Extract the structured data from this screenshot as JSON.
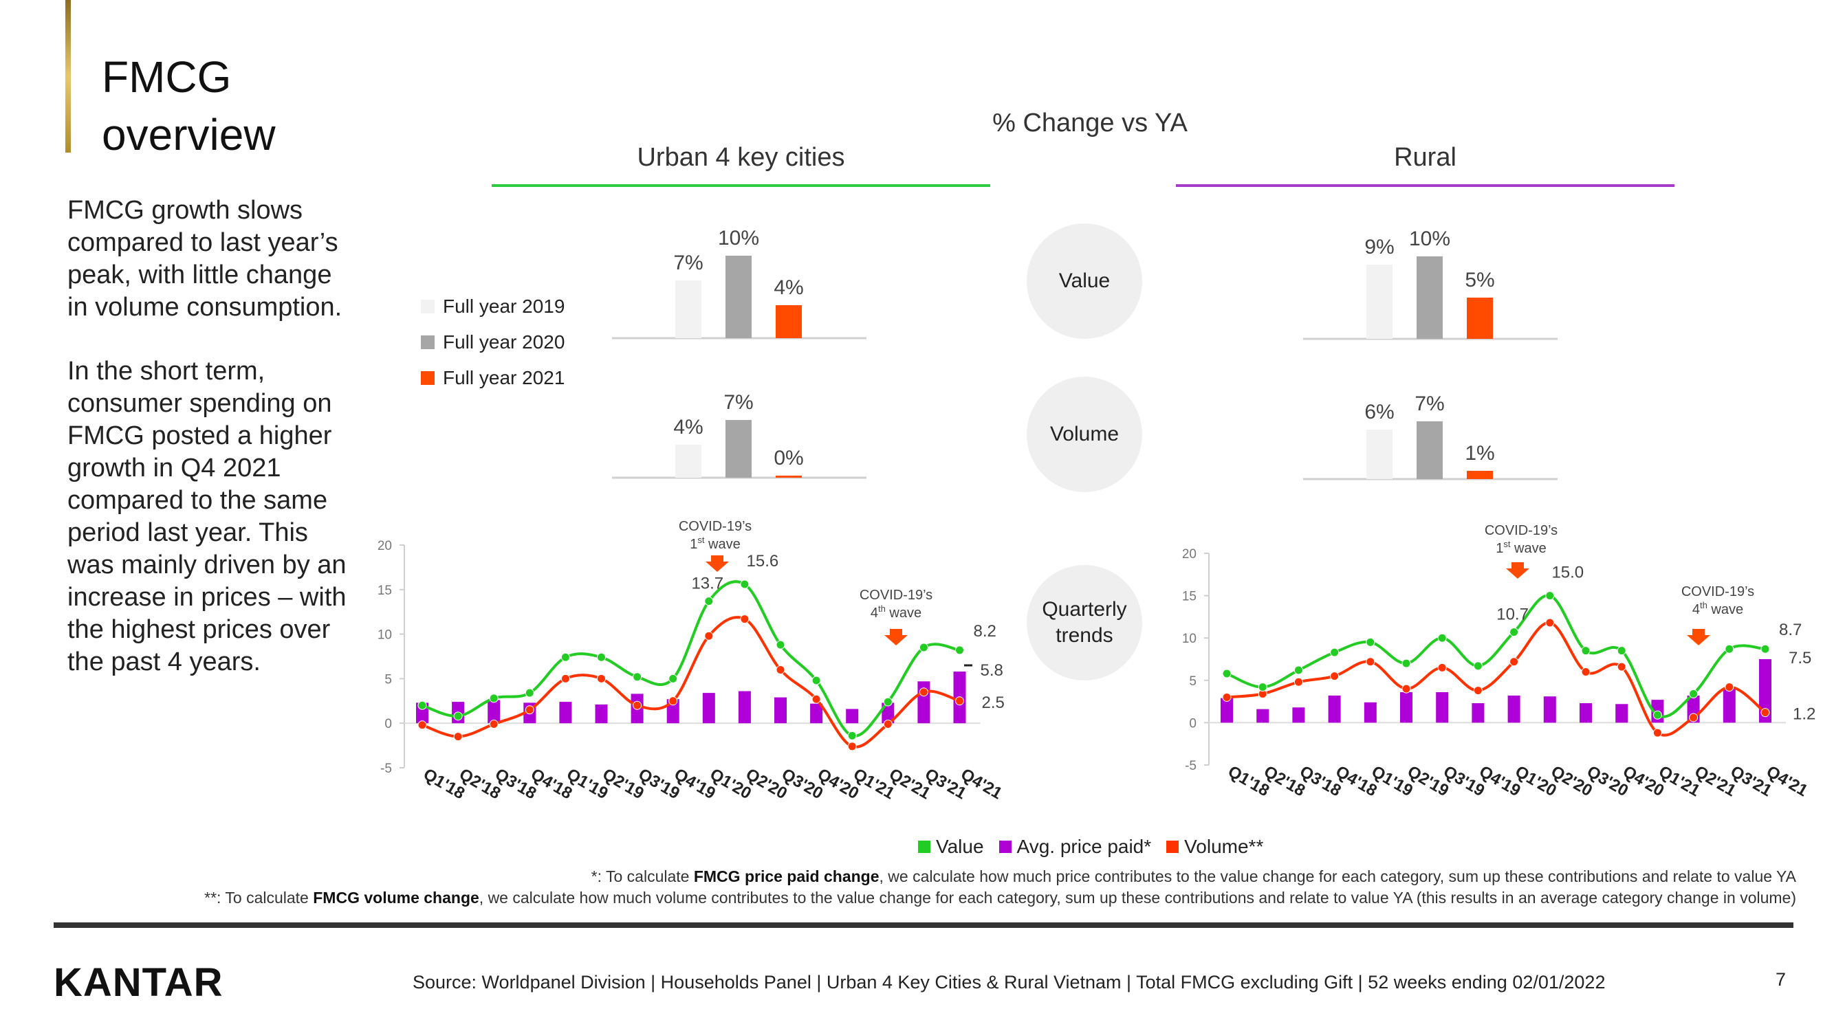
{
  "page": {
    "title_line1": "FMCG",
    "title_line2": "overview",
    "narrative_p1": "FMCG growth slows compared to last year’s peak, with little change in volume consumption.",
    "narrative_p2": "In the short term, consumer spending on FMCG posted a higher growth in Q4 2021 compared to the same period last year. This was mainly driven by an increase in prices – with the highest prices over the past 4 years.",
    "panel_title": "% Change vs YA",
    "urban_title": "Urban 4 key cities",
    "rural_title": "Rural",
    "circle_value": "Value",
    "circle_volume": "Volume",
    "circle_quarterly_1": "Quarterly",
    "circle_quarterly_2": "trends",
    "legend_fy": [
      "Full year 2019",
      "Full year 2020",
      "Full year 2021"
    ],
    "legend_bottom": [
      "Value",
      "Avg. price paid*",
      "Volume**"
    ],
    "footnote1_pre": "*: To calculate ",
    "footnote1_bold": "FMCG price paid change",
    "footnote1_post": ", we calculate how much price contributes to the value change for each category, sum up these contributions and relate to value YA",
    "footnote2_pre": "**: To calculate ",
    "footnote2_bold": "FMCG volume change",
    "footnote2_post": ", we calculate how much volume contributes to the value change for each category, sum up these contributions and relate to value YA (this results in an average category change in volume)",
    "logo": "KANTAR",
    "source": "Source: Worldpanel Division | Households Panel | Urban 4 Key Cities & Rural Vietnam | Total FMCG excluding Gift | 52 weeks ending 02/01/2022",
    "page_number": "7",
    "covid_wave1_line1": "COVID-19’s",
    "covid_wave1_line2": "wave",
    "covid_wave1_ord": "1",
    "covid_wave1_sup": "st",
    "covid_wave4_line1": "COVID-19’s",
    "covid_wave4_line2": "wave",
    "covid_wave4_ord": "4",
    "covid_wave4_sup": "th"
  },
  "colors": {
    "fy2019": "#f2f2f2",
    "fy2020": "#a6a6a6",
    "fy2021": "#ff4b00",
    "value": "#22cc22",
    "price": "#b000d8",
    "volume": "#ff3300",
    "urban_accent": "#2ecc40",
    "rural_accent": "#a53cc8",
    "covid_arrow": "#ff4b00"
  },
  "chart_data": [
    {
      "id": "urban-value-fy",
      "type": "bar",
      "title": "Urban 4 key cities - Value",
      "categories": [
        "Full year 2019",
        "Full year 2020",
        "Full year 2021"
      ],
      "values": [
        7,
        10,
        4
      ],
      "labels": [
        "7%",
        "10%",
        "4%"
      ],
      "ylim": [
        0,
        10
      ]
    },
    {
      "id": "urban-volume-fy",
      "type": "bar",
      "title": "Urban 4 key cities - Volume",
      "categories": [
        "Full year 2019",
        "Full year 2020",
        "Full year 2021"
      ],
      "values": [
        4,
        7,
        0
      ],
      "labels": [
        "4%",
        "7%",
        "0%"
      ],
      "ylim": [
        0,
        10
      ]
    },
    {
      "id": "rural-value-fy",
      "type": "bar",
      "title": "Rural - Value",
      "categories": [
        "Full year 2019",
        "Full year 2020",
        "Full year 2021"
      ],
      "values": [
        9,
        10,
        5
      ],
      "labels": [
        "9%",
        "10%",
        "5%"
      ],
      "ylim": [
        0,
        10
      ]
    },
    {
      "id": "rural-volume-fy",
      "type": "bar",
      "title": "Rural - Volume",
      "categories": [
        "Full year 2019",
        "Full year 2020",
        "Full year 2021"
      ],
      "values": [
        6,
        7,
        1
      ],
      "labels": [
        "6%",
        "7%",
        "1%"
      ],
      "ylim": [
        0,
        10
      ]
    },
    {
      "id": "urban-quarterly",
      "type": "line",
      "title": "Urban 4 key cities - Quarterly trends",
      "categories": [
        "Q1'18",
        "Q2'18",
        "Q3'18",
        "Q4'18",
        "Q1'19",
        "Q2'19",
        "Q3'19",
        "Q4'19",
        "Q1'20",
        "Q2'20",
        "Q3'20",
        "Q4'20",
        "Q1'21",
        "Q2'21",
        "Q3'21",
        "Q4'21"
      ],
      "yticks": [
        "20",
        "15",
        "10",
        "5",
        "0",
        "-5"
      ],
      "ylim": [
        -5,
        20
      ],
      "series": [
        {
          "name": "Value",
          "kind": "line",
          "values": [
            2.0,
            0.8,
            2.8,
            3.4,
            7.4,
            7.4,
            5.2,
            5.0,
            13.7,
            15.6,
            8.8,
            4.8,
            -1.4,
            2.4,
            8.5,
            8.2
          ]
        },
        {
          "name": "Avg. price paid*",
          "kind": "bar",
          "values": [
            2.3,
            2.4,
            2.6,
            2.3,
            2.4,
            2.1,
            3.3,
            2.7,
            3.4,
            3.6,
            2.9,
            2.2,
            1.6,
            2.3,
            4.7,
            5.8
          ]
        },
        {
          "name": "Volume**",
          "kind": "line",
          "values": [
            -0.2,
            -1.5,
            -0.1,
            1.5,
            5.0,
            5.0,
            2.0,
            2.5,
            9.8,
            11.7,
            6.0,
            2.7,
            -2.6,
            -0.1,
            3.5,
            2.5
          ]
        }
      ],
      "labels": [
        {
          "series": "Value",
          "index": 8,
          "text": "13.7"
        },
        {
          "series": "Value",
          "index": 9,
          "text": "15.6"
        },
        {
          "series": "Value",
          "index": 15,
          "text": "8.2"
        },
        {
          "series": "Avg. price paid*",
          "index": 15,
          "text": "5.8"
        },
        {
          "series": "Volume**",
          "index": 15,
          "text": "2.5"
        }
      ]
    },
    {
      "id": "rural-quarterly",
      "type": "line",
      "title": "Rural - Quarterly trends",
      "categories": [
        "Q1'18",
        "Q2'18",
        "Q3'18",
        "Q4'18",
        "Q1'19",
        "Q2'19",
        "Q3'19",
        "Q4'19",
        "Q1'20",
        "Q2'20",
        "Q3'20",
        "Q4'20",
        "Q1'21",
        "Q2'21",
        "Q3'21",
        "Q4'21"
      ],
      "yticks": [
        "20",
        "15",
        "10",
        "5",
        "0",
        "-5"
      ],
      "ylim": [
        -5,
        20
      ],
      "series": [
        {
          "name": "Value",
          "kind": "line",
          "values": [
            5.8,
            4.2,
            6.2,
            8.3,
            9.5,
            7.0,
            10.0,
            6.7,
            10.7,
            15.0,
            8.5,
            8.5,
            0.9,
            3.4,
            8.7,
            8.7
          ]
        },
        {
          "name": "Avg. price paid*",
          "kind": "bar",
          "values": [
            2.9,
            1.6,
            1.8,
            3.2,
            2.4,
            3.6,
            3.6,
            2.3,
            3.2,
            3.1,
            2.3,
            2.2,
            2.7,
            3.2,
            4.0,
            7.5
          ]
        },
        {
          "name": "Volume**",
          "kind": "line",
          "values": [
            3.0,
            3.4,
            4.8,
            5.5,
            7.2,
            4.0,
            6.5,
            3.8,
            7.2,
            11.8,
            6.0,
            6.6,
            -1.2,
            0.6,
            4.2,
            1.2
          ]
        }
      ],
      "labels": [
        {
          "series": "Value",
          "index": 8,
          "text": "10.7"
        },
        {
          "series": "Value",
          "index": 9,
          "text": "15.0"
        },
        {
          "series": "Value",
          "index": 15,
          "text": "8.7"
        },
        {
          "series": "Avg. price paid*",
          "index": 15,
          "text": "7.5"
        },
        {
          "series": "Volume**",
          "index": 15,
          "text": "1.2"
        }
      ]
    }
  ]
}
